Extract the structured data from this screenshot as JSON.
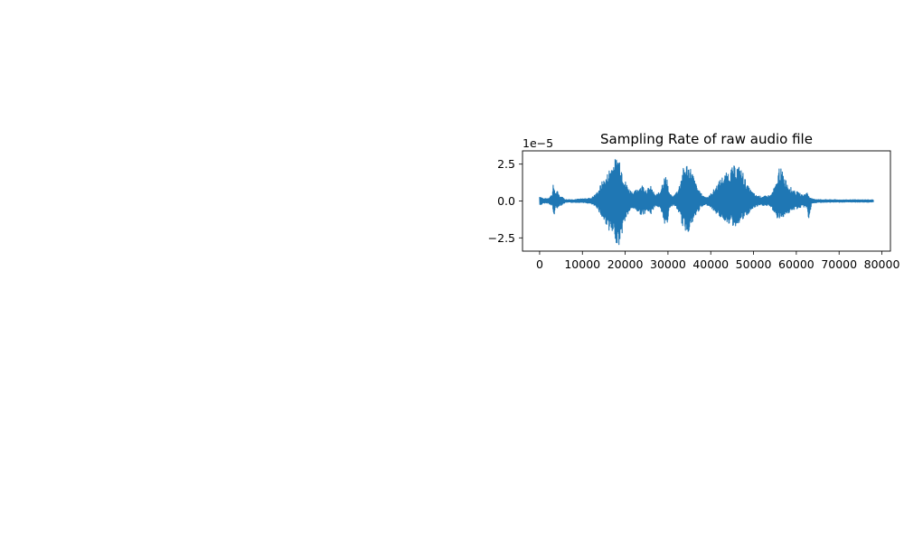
{
  "chart_data": {
    "type": "line",
    "title": "Sampling Rate of raw audio file",
    "xlabel": "",
    "ylabel": "",
    "offset_text": "1e−5",
    "xlim": [
      -4000,
      82000
    ],
    "ylim": [
      -3.4,
      3.4
    ],
    "x_ticks": [
      0,
      10000,
      20000,
      30000,
      40000,
      50000,
      60000,
      70000,
      80000
    ],
    "x_tick_labels": [
      "0",
      "10000",
      "20000",
      "30000",
      "40000",
      "50000",
      "60000",
      "70000",
      "80000"
    ],
    "y_ticks": [
      -2.5,
      0.0,
      2.5
    ],
    "y_tick_labels": [
      "−2.5",
      "0.0",
      "2.5"
    ],
    "grid": false,
    "series": [
      {
        "color": "#1f77b4",
        "envelope": {
          "x": [
            0,
            1000,
            2000,
            3000,
            3200,
            3500,
            3800,
            4200,
            4700,
            5000,
            6000,
            8000,
            10000,
            12000,
            13500,
            14500,
            15500,
            16500,
            17500,
            18300,
            18800,
            19300,
            20000,
            21000,
            22000,
            23000,
            24000,
            25000,
            26000,
            27000,
            28000,
            29000,
            29800,
            30200,
            31000,
            31500,
            32500,
            33500,
            34500,
            35500,
            36500,
            37500,
            38500,
            39500,
            41000,
            42500,
            44000,
            45500,
            46500,
            47500,
            48500,
            49500,
            50500,
            52000,
            54000,
            55500,
            56000,
            56800,
            57500,
            58500,
            59500,
            60500,
            61500,
            62500,
            62900,
            63500,
            65000,
            70000,
            75000,
            78000
          ],
          "upper": [
            0.35,
            0.15,
            0.2,
            0.5,
            1.2,
            0.9,
            0.4,
            0.8,
            0.3,
            0.35,
            0.1,
            0.1,
            0.15,
            0.2,
            0.6,
            1.3,
            1.6,
            2.4,
            2.8,
            3.1,
            3.0,
            2.2,
            1.4,
            0.8,
            0.6,
            0.9,
            1.1,
            0.8,
            1.0,
            0.4,
            0.6,
            1.6,
            1.7,
            0.6,
            0.3,
            0.4,
            0.9,
            2.2,
            2.6,
            2.2,
            1.2,
            0.6,
            0.3,
            0.3,
            0.9,
            1.6,
            2.0,
            2.4,
            2.4,
            2.0,
            1.1,
            0.7,
            0.4,
            0.3,
            0.4,
            1.3,
            2.4,
            2.0,
            1.5,
            1.0,
            0.7,
            0.6,
            0.4,
            0.6,
            0.4,
            0.15,
            0.1,
            0.08,
            0.08,
            0.08
          ],
          "lower": [
            -0.3,
            -0.15,
            -0.15,
            -0.4,
            -1.15,
            -0.8,
            -0.35,
            -0.6,
            -0.25,
            -0.3,
            -0.1,
            -0.1,
            -0.1,
            -0.2,
            -0.5,
            -1.2,
            -1.6,
            -2.2,
            -2.6,
            -3.1,
            -2.9,
            -2.1,
            -1.3,
            -0.7,
            -0.5,
            -0.8,
            -1.0,
            -0.7,
            -0.9,
            -0.3,
            -0.5,
            -1.5,
            -1.7,
            -0.5,
            -0.3,
            -0.3,
            -0.8,
            -1.9,
            -2.2,
            -1.7,
            -1.0,
            -0.5,
            -0.3,
            -0.3,
            -0.8,
            -1.2,
            -1.5,
            -1.8,
            -1.5,
            -1.3,
            -1.0,
            -0.6,
            -0.4,
            -0.3,
            -0.4,
            -1.2,
            -1.3,
            -1.1,
            -0.9,
            -0.8,
            -0.6,
            -0.5,
            -0.4,
            -0.5,
            -1.4,
            -0.2,
            -0.1,
            -0.08,
            -0.08,
            -0.08
          ]
        }
      }
    ]
  }
}
